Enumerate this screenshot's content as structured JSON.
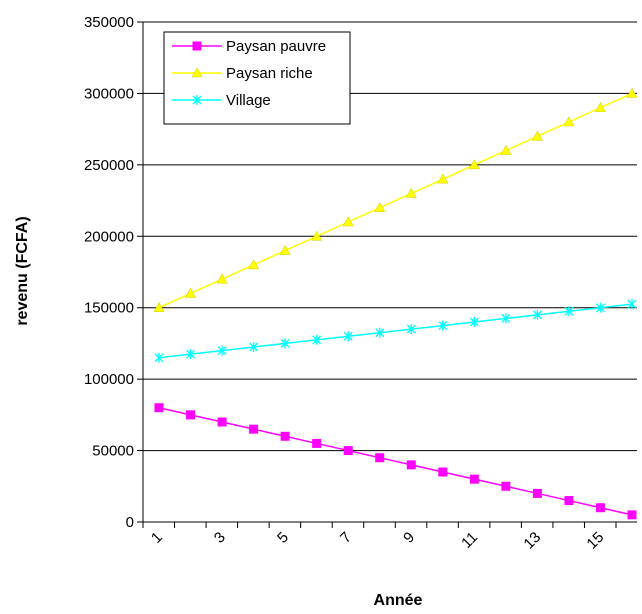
{
  "chart_data": {
    "type": "line",
    "xlabel": "Année",
    "ylabel": "revenu (FCFA)",
    "x": [
      1,
      2,
      3,
      4,
      5,
      6,
      7,
      8,
      9,
      10,
      11,
      12,
      13,
      14,
      15,
      16
    ],
    "x_tick_labels": [
      "1",
      "3",
      "5",
      "7",
      "9",
      "11",
      "13",
      "15"
    ],
    "y_tick_labels": [
      "0",
      "50000",
      "100000",
      "150000",
      "200000",
      "250000",
      "300000",
      "350000"
    ],
    "ylim": [
      0,
      350000
    ],
    "grid": "horizontal",
    "legend_position": "top-left",
    "series": [
      {
        "name": "Paysan pauvre",
        "color": "#ff00ff",
        "marker": "square",
        "values": [
          80000,
          75000,
          70000,
          65000,
          60000,
          55000,
          50000,
          45000,
          40000,
          35000,
          30000,
          25000,
          20000,
          15000,
          10000,
          5000
        ]
      },
      {
        "name": "Paysan riche",
        "color": "#ffff00",
        "marker": "triangle",
        "values": [
          150000,
          160000,
          170000,
          180000,
          190000,
          200000,
          210000,
          220000,
          230000,
          240000,
          250000,
          260000,
          270000,
          280000,
          290000,
          300000
        ]
      },
      {
        "name": "Village",
        "color": "#00ffff",
        "marker": "star",
        "values": [
          115000,
          117500,
          120000,
          122500,
          125000,
          127500,
          130000,
          132500,
          135000,
          137500,
          140000,
          142500,
          145000,
          147500,
          150000,
          152500
        ]
      }
    ]
  }
}
